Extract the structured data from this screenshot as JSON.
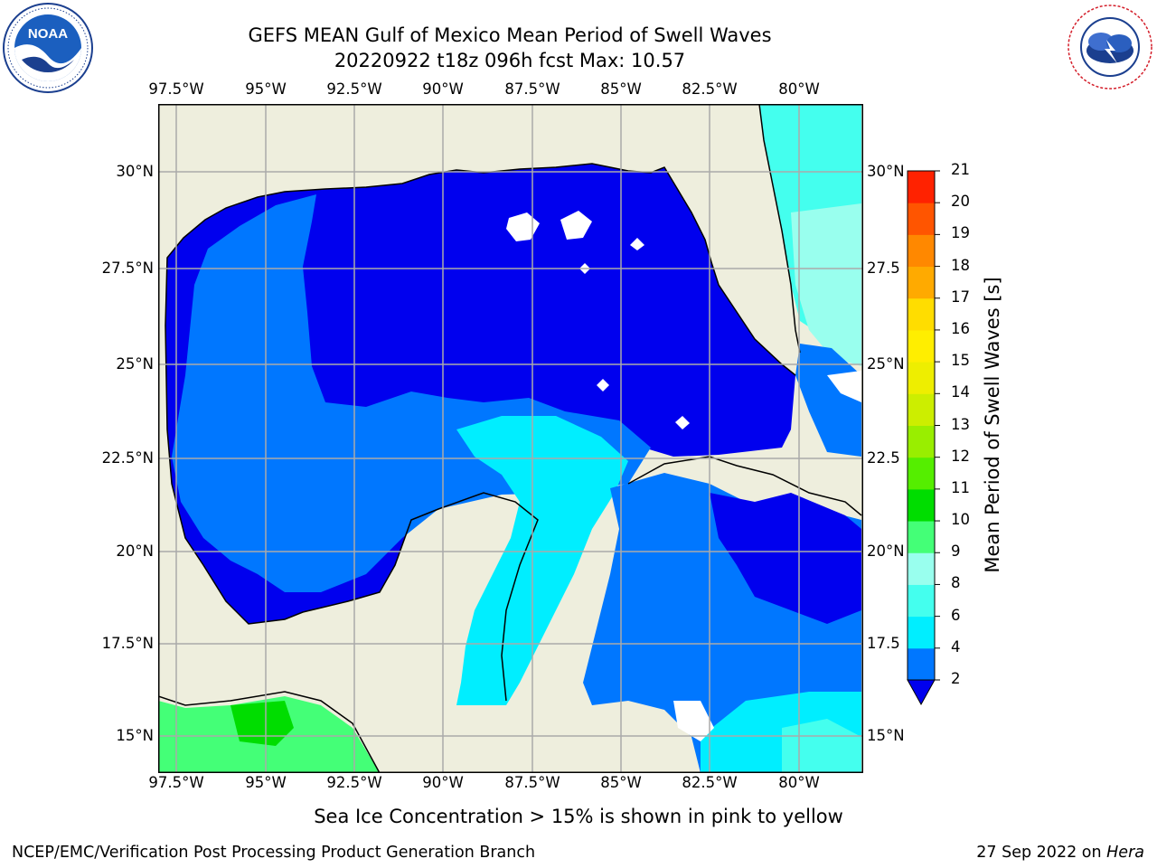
{
  "title": {
    "line1": "GEFS MEAN Gulf of Mexico Mean Period of Swell Waves",
    "line2": "20220922 t18z 096h fcst   Max: 10.57"
  },
  "logos": {
    "noaa": {
      "text": "NOAA",
      "ring_text": "NATIONAL OCEANIC AND ATMOSPHERIC ADMINISTRATION · U.S. DEPARTMENT OF COMMERCE"
    },
    "nws": {
      "ring_text": "NATIONAL WEATHER SERVICE"
    }
  },
  "map": {
    "lon_labels": [
      "97.5°W",
      "95°W",
      "92.5°W",
      "90°W",
      "87.5°W",
      "85°W",
      "82.5°W",
      "80°W"
    ],
    "lat_labels": [
      "30°N",
      "27.5°N",
      "25°N",
      "22.5°N",
      "20°N",
      "17.5°N",
      "15°N"
    ],
    "right_lat_labels": [
      "30°N",
      "27.5",
      "25°N",
      "22.5",
      "20°N",
      "17.5",
      "15°N"
    ],
    "lon_range": [
      -98,
      -78.5
    ],
    "lat_range": [
      14,
      31.5
    ],
    "grid": true,
    "colors": {
      "land": "#eeeedd",
      "no_data": "#ffffff",
      "grid": "#aaaaaa",
      "coast": "#000000"
    }
  },
  "colorbar": {
    "label": "Mean Period of Swell Waves [s]",
    "ticks": [
      "2",
      "4",
      "6",
      "8",
      "9",
      "10",
      "11",
      "12",
      "13",
      "14",
      "15",
      "16",
      "17",
      "18",
      "19",
      "20",
      "21"
    ],
    "colors": [
      "#0077ff",
      "#00eeff",
      "#44ffee",
      "#99ffee",
      "#44ff77",
      "#00dd00",
      "#55ee00",
      "#99ee00",
      "#ccee00",
      "#eeee00",
      "#ffee00",
      "#ffdd00",
      "#ffaa00",
      "#ff8800",
      "#ff5500",
      "#ff2200",
      "#ff0000"
    ],
    "under_color": "#0000ee"
  },
  "note": "Sea Ice Concentration > 15% is shown in pink to yellow",
  "footer": {
    "left": "NCEP/EMC/Verification Post Processing Product Generation Branch",
    "date": "27 Sep 2022 on ",
    "machine": "Hera"
  }
}
